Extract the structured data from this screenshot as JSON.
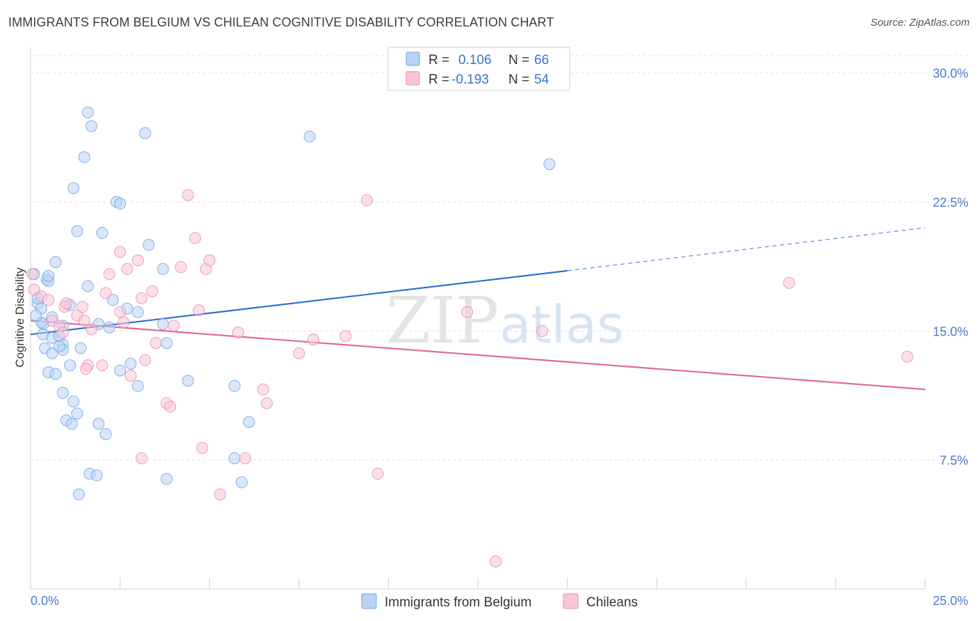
{
  "title": "IMMIGRANTS FROM BELGIUM VS CHILEAN COGNITIVE DISABILITY CORRELATION CHART",
  "source": "Source: ZipAtlas.com",
  "colors": {
    "blue": "#6fa3e6",
    "blue_fill": "#b9d3f4",
    "blue_line": "#2f72d0",
    "pink": "#ea8bb0",
    "pink_fill": "#f7c7d8",
    "pink_line": "#e0699a",
    "grid": "#e2e2e2",
    "tick_text": "#4a7cc7"
  },
  "legend": {
    "r_label": "R =",
    "n_label": "N =",
    "series1_r": "0.106",
    "series1_n": "66",
    "series2_r": "-0.193",
    "series2_n": "54"
  },
  "watermark": {
    "zip": "ZIP",
    "atlas": "atlas"
  },
  "chart_data": {
    "type": "scatter",
    "title": "IMMIGRANTS FROM BELGIUM VS CHILEAN COGNITIVE DISABILITY CORRELATION CHART",
    "xlabel": "",
    "ylabel": "Cognitive Disability",
    "xlim": [
      0,
      25
    ],
    "ylim": [
      0,
      31
    ],
    "x_tick_labels": [
      "0.0%",
      "25.0%"
    ],
    "y_ticks": [
      7.5,
      15.0,
      22.5,
      30.0
    ],
    "y_tick_labels": [
      "7.5%",
      "15.0%",
      "22.5%",
      "30.0%"
    ],
    "grid": true,
    "legend_position": "top-center",
    "series": [
      {
        "name": "Immigrants from Belgium",
        "color": "#6fa3e6",
        "r": 0.106,
        "n": 66,
        "trend": {
          "x": [
            0,
            15
          ],
          "y": [
            14.8,
            18.5
          ],
          "dashed_extension": {
            "x": [
              15,
              25
            ],
            "y": [
              18.5,
              21.0
            ]
          }
        },
        "points": [
          [
            1.6,
            27.7
          ],
          [
            1.7,
            26.9
          ],
          [
            3.2,
            26.5
          ],
          [
            7.8,
            26.3
          ],
          [
            14.5,
            24.7
          ],
          [
            1.5,
            25.1
          ],
          [
            1.2,
            23.3
          ],
          [
            2.4,
            22.5
          ],
          [
            2.5,
            22.4
          ],
          [
            1.3,
            20.8
          ],
          [
            2.0,
            20.7
          ],
          [
            3.3,
            20.0
          ],
          [
            0.7,
            19.0
          ],
          [
            3.7,
            18.6
          ],
          [
            0.45,
            18.0
          ],
          [
            0.5,
            17.9
          ],
          [
            1.6,
            17.6
          ],
          [
            0.2,
            16.6
          ],
          [
            0.3,
            16.3
          ],
          [
            1.1,
            16.5
          ],
          [
            2.3,
            16.8
          ],
          [
            2.7,
            16.3
          ],
          [
            3.0,
            16.1
          ],
          [
            0.6,
            15.8
          ],
          [
            0.35,
            15.4
          ],
          [
            0.9,
            15.3
          ],
          [
            1.9,
            15.4
          ],
          [
            2.2,
            15.2
          ],
          [
            3.7,
            15.4
          ],
          [
            0.35,
            14.8
          ],
          [
            0.6,
            14.6
          ],
          [
            0.8,
            14.7
          ],
          [
            0.9,
            14.2
          ],
          [
            0.9,
            13.9
          ],
          [
            1.4,
            14.0
          ],
          [
            3.8,
            14.3
          ],
          [
            0.4,
            14.0
          ],
          [
            0.6,
            13.7
          ],
          [
            1.1,
            13.0
          ],
          [
            2.8,
            13.1
          ],
          [
            0.5,
            12.6
          ],
          [
            0.7,
            12.5
          ],
          [
            2.5,
            12.7
          ],
          [
            4.4,
            12.1
          ],
          [
            3.0,
            11.8
          ],
          [
            5.7,
            11.8
          ],
          [
            0.9,
            11.4
          ],
          [
            1.2,
            10.9
          ],
          [
            1.3,
            10.2
          ],
          [
            1.0,
            9.8
          ],
          [
            1.15,
            9.6
          ],
          [
            1.9,
            9.6
          ],
          [
            6.1,
            9.7
          ],
          [
            2.1,
            9.0
          ],
          [
            5.7,
            7.6
          ],
          [
            1.65,
            6.7
          ],
          [
            1.85,
            6.6
          ],
          [
            3.8,
            6.4
          ],
          [
            5.9,
            6.2
          ],
          [
            1.35,
            5.5
          ],
          [
            0.2,
            16.9
          ],
          [
            0.3,
            15.5
          ],
          [
            0.8,
            14.1
          ],
          [
            0.5,
            18.2
          ],
          [
            0.15,
            15.9
          ],
          [
            0.1,
            18.3
          ]
        ]
      },
      {
        "name": "Chileans",
        "color": "#ea8bb0",
        "r": -0.193,
        "n": 54,
        "trend": {
          "x": [
            0,
            25
          ],
          "y": [
            15.6,
            11.6
          ]
        },
        "points": [
          [
            0.05,
            18.3
          ],
          [
            0.1,
            17.4
          ],
          [
            0.3,
            17.0
          ],
          [
            0.5,
            16.8
          ],
          [
            0.6,
            15.6
          ],
          [
            0.8,
            15.3
          ],
          [
            0.9,
            14.9
          ],
          [
            0.95,
            16.4
          ],
          [
            1.3,
            15.9
          ],
          [
            1.5,
            15.6
          ],
          [
            1.7,
            15.1
          ],
          [
            1.6,
            13.0
          ],
          [
            1.55,
            12.8
          ],
          [
            2.0,
            13.0
          ],
          [
            2.1,
            17.2
          ],
          [
            2.2,
            18.3
          ],
          [
            2.5,
            16.1
          ],
          [
            2.5,
            19.6
          ],
          [
            2.6,
            15.5
          ],
          [
            2.7,
            18.6
          ],
          [
            2.8,
            12.4
          ],
          [
            3.0,
            19.1
          ],
          [
            3.1,
            16.9
          ],
          [
            3.2,
            13.3
          ],
          [
            3.4,
            17.3
          ],
          [
            3.5,
            14.3
          ],
          [
            3.8,
            10.8
          ],
          [
            3.9,
            10.6
          ],
          [
            4.0,
            15.3
          ],
          [
            4.2,
            18.7
          ],
          [
            4.4,
            22.9
          ],
          [
            4.6,
            20.4
          ],
          [
            4.7,
            16.2
          ],
          [
            4.9,
            18.6
          ],
          [
            5.0,
            19.1
          ],
          [
            5.3,
            5.5
          ],
          [
            5.8,
            14.9
          ],
          [
            6.0,
            7.6
          ],
          [
            6.5,
            11.6
          ],
          [
            6.6,
            10.8
          ],
          [
            7.5,
            13.7
          ],
          [
            7.9,
            14.5
          ],
          [
            8.8,
            14.7
          ],
          [
            9.4,
            22.6
          ],
          [
            9.7,
            6.7
          ],
          [
            12.2,
            16.1
          ],
          [
            14.3,
            15.0
          ],
          [
            13.0,
            1.6
          ],
          [
            21.2,
            17.8
          ],
          [
            24.5,
            13.5
          ],
          [
            3.1,
            7.6
          ],
          [
            4.8,
            8.2
          ],
          [
            1.0,
            16.6
          ],
          [
            1.45,
            16.4
          ]
        ]
      }
    ]
  }
}
